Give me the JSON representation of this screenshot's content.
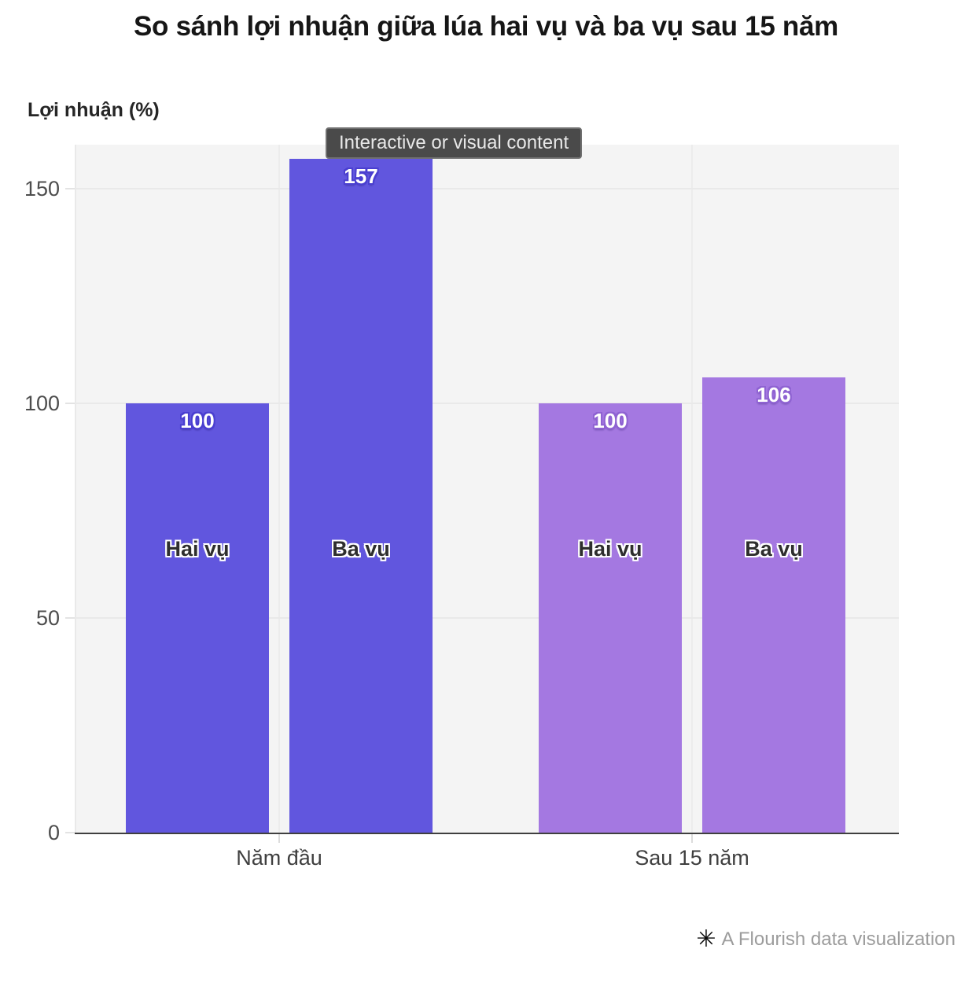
{
  "tooltip": {
    "text": "Interactive or visual content"
  },
  "footer": {
    "credit_text": "A Flourish data visualization",
    "logo_icon": "✳"
  },
  "chart_data": {
    "type": "bar",
    "title": "So sánh lợi nhuận giữa lúa hai vụ và ba vụ sau 15 năm",
    "ylabel": "Lợi nhuận (%)",
    "xlabel": "",
    "categories": [
      "Năm đầu",
      "Sau 15 năm"
    ],
    "series": [
      {
        "name": "Hai vụ",
        "values": [
          100,
          100
        ]
      },
      {
        "name": "Ba vụ",
        "values": [
          157,
          106
        ]
      }
    ],
    "value_labels": [
      [
        "100",
        "157"
      ],
      [
        "100",
        "106"
      ]
    ],
    "yticks": [
      0,
      50,
      100,
      150
    ],
    "ylim": [
      0,
      160
    ],
    "grid": true,
    "legend_position": "labels-inside-bars",
    "colors": {
      "category_bar_colors": [
        "#6156de",
        "#a478e1"
      ],
      "value_label_halo": [
        "#4a3fd0",
        "#8f63d2"
      ],
      "plot_background": "#f4f4f4",
      "gridline": "#e9e9e9",
      "axis_line": "#3f3f3f",
      "tick_label": "#4d4d4d",
      "title": "#161616",
      "footer_text": "#9c9c9c"
    }
  }
}
